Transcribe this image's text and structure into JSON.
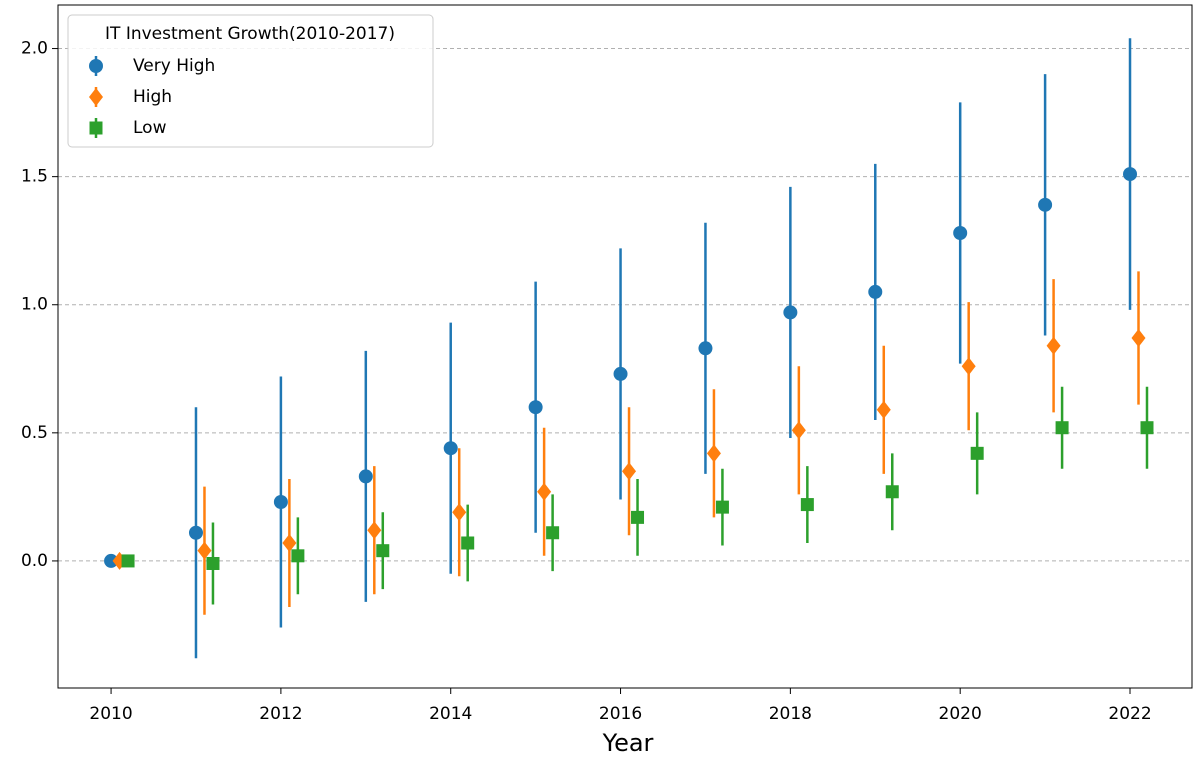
{
  "chart_data": {
    "type": "errorbar",
    "xlabel": "Year",
    "legend_title": "IT Investment Growth(2010-2017)",
    "legend_loc": "upper left",
    "grid": "y",
    "xlim": [
      2009.375,
      2022.73
    ],
    "ylim": [
      -0.496,
      2.17
    ],
    "xticks": [
      2010,
      2012,
      2014,
      2016,
      2018,
      2020,
      2022
    ],
    "yticks": [
      {
        "value": 0,
        "label": "0.0"
      },
      0.5,
      {
        "value": 1,
        "label": "1.0"
      },
      1.5,
      {
        "value": 2,
        "label": "2.0"
      }
    ],
    "series": [
      {
        "name": "Very High",
        "color": "#1f77b4",
        "marker": "circle",
        "x": [
          2010,
          2011,
          2012,
          2013,
          2014,
          2015,
          2016,
          2017,
          2018,
          2019,
          2020,
          2021,
          2022
        ],
        "values": [
          0,
          0.11,
          0.23,
          0.33,
          0.44,
          0.6,
          0.73,
          0.83,
          0.97,
          1.05,
          1.28,
          1.39,
          1.51
        ],
        "errors": [
          0,
          0.49,
          0.49,
          0.49,
          0.49,
          0.49,
          0.49,
          0.49,
          0.49,
          0.5,
          0.51,
          0.51,
          0.53
        ]
      },
      {
        "name": "High",
        "color": "#ff7f0e",
        "marker": "diamond",
        "x": [
          2010.1,
          2011.1,
          2012.1,
          2013.1,
          2014.1,
          2015.1,
          2016.1,
          2017.1,
          2018.1,
          2019.1,
          2020.1,
          2021.1,
          2022.1
        ],
        "values": [
          0,
          0.04,
          0.07,
          0.12,
          0.19,
          0.27,
          0.35,
          0.42,
          0.51,
          0.59,
          0.76,
          0.84,
          0.87
        ],
        "errors": [
          0.02,
          0.25,
          0.25,
          0.25,
          0.25,
          0.25,
          0.25,
          0.25,
          0.25,
          0.25,
          0.25,
          0.26,
          0.26
        ]
      },
      {
        "name": "Low",
        "color": "#2ca02c",
        "marker": "square",
        "x": [
          2010.2,
          2011.2,
          2012.2,
          2013.2,
          2014.2,
          2015.2,
          2016.2,
          2017.2,
          2018.2,
          2019.2,
          2020.2,
          2021.2,
          2022.2
        ],
        "values": [
          0,
          -0.01,
          0.02,
          0.04,
          0.07,
          0.11,
          0.17,
          0.21,
          0.22,
          0.27,
          0.42,
          0.52,
          0.52
        ],
        "errors": [
          0,
          0.16,
          0.15,
          0.15,
          0.15,
          0.15,
          0.15,
          0.15,
          0.15,
          0.15,
          0.16,
          0.16,
          0.16
        ]
      }
    ]
  }
}
